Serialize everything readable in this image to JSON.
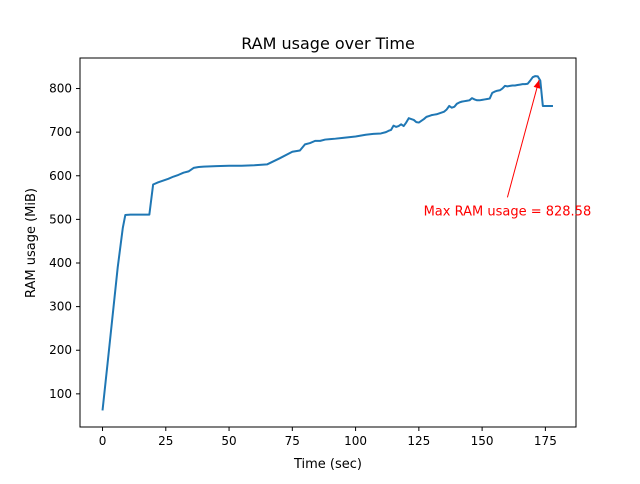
{
  "chart_data": {
    "type": "line",
    "title": "RAM usage over Time",
    "xlabel": "Time (sec)",
    "ylabel": "RAM usage (MiB)",
    "xlim": [
      -8.9,
      187.1
    ],
    "ylim": [
      24,
      870
    ],
    "xticks": [
      0,
      25,
      50,
      75,
      100,
      125,
      150,
      175
    ],
    "yticks": [
      100,
      200,
      300,
      400,
      500,
      600,
      700,
      800
    ],
    "grid": false,
    "series_color": "#1f77b4",
    "annotation": {
      "text": "Max RAM usage = 828.58",
      "color": "#ff0000",
      "point": [
        172.5,
        828.58
      ],
      "text_anchor": [
        160,
        523
      ]
    },
    "series": [
      {
        "x": [
          0,
          2,
          4,
          6,
          8,
          9,
          11,
          13,
          15,
          17,
          18.5,
          20,
          22,
          24,
          26,
          28,
          30,
          32,
          34,
          36,
          38,
          40,
          45,
          50,
          55,
          60,
          65,
          70,
          75,
          78,
          80,
          82,
          84,
          86,
          88,
          90,
          92,
          95,
          100,
          104,
          107,
          110,
          112,
          113,
          114,
          115,
          116,
          117,
          118,
          119,
          120,
          121,
          122,
          123,
          124,
          125,
          126,
          127,
          128,
          129,
          130,
          131,
          132,
          133,
          134,
          135,
          136,
          137,
          138,
          139,
          140,
          141,
          142,
          143,
          144,
          145,
          146,
          147,
          148,
          149,
          150,
          151,
          152,
          153,
          154,
          155,
          156,
          157,
          158,
          159,
          160,
          161,
          162,
          163,
          164,
          165,
          166,
          167,
          168,
          169,
          170,
          171,
          172,
          173,
          174,
          175,
          176,
          177,
          178
        ],
        "y": [
          62,
          170,
          280,
          390,
          480,
          510,
          511,
          511,
          511,
          511,
          511,
          580,
          585,
          589,
          593,
          598,
          602,
          607,
          610,
          618,
          620,
          621,
          622,
          623,
          623,
          624,
          626,
          640,
          655,
          658,
          672,
          675,
          680,
          680,
          683,
          684,
          685,
          687,
          690,
          694,
          696,
          697,
          700,
          703,
          705,
          715,
          712,
          714,
          718,
          714,
          722,
          732,
          730,
          728,
          723,
          722,
          726,
          730,
          735,
          737,
          739,
          740,
          741,
          743,
          745,
          747,
          752,
          760,
          756,
          758,
          765,
          768,
          770,
          771,
          772,
          773,
          778,
          775,
          773,
          773,
          774,
          775,
          776,
          777,
          790,
          793,
          795,
          796,
          800,
          806,
          805,
          806,
          807,
          807,
          808,
          809,
          810,
          810,
          811,
          818,
          826,
          828.58,
          828,
          818,
          760,
          760,
          760,
          760,
          760
        ]
      }
    ]
  }
}
